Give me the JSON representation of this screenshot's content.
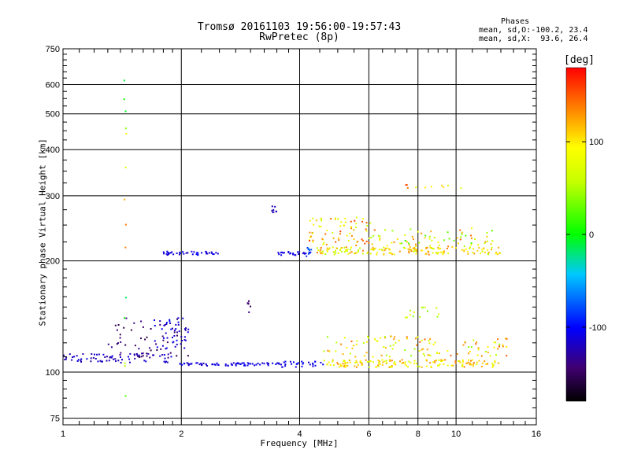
{
  "chart_data": {
    "type": "scatter",
    "title": "Tromsø 20161103 19:56:00-19:57:43",
    "subtitle": "RwPretec (8p)",
    "xlabel": "Frequency [MHz]",
    "ylabel": "Stationary phase Virtual Height [km]",
    "x_scale": "log",
    "y_scale": "log",
    "xlim": [
      1,
      16
    ],
    "ylim": [
      72,
      750
    ],
    "x_ticks": [
      1,
      2,
      4,
      6,
      8,
      10,
      16
    ],
    "x_tick_labels": [
      "1",
      "2",
      "4",
      "6",
      "8",
      "10",
      "16"
    ],
    "y_ticks": [
      75,
      100,
      200,
      300,
      400,
      500,
      600,
      750
    ],
    "y_tick_labels": [
      "75",
      "100",
      "200",
      "300",
      "400",
      "500",
      "600",
      "750"
    ],
    "grid": true,
    "stats": {
      "heading": "Phases",
      "o_line": "mean, sd,O:-100.2, 23.4",
      "x_line": "mean, sd,X:  93.6, 26.4"
    },
    "colorbar": {
      "title": "[deg]",
      "range": [
        -180,
        180
      ],
      "ticks": [
        100,
        0,
        -100
      ],
      "tick_labels": [
        "100",
        "0",
        "-100"
      ]
    },
    "clusters": [
      {
        "x": [
          1.0,
          1.9
        ],
        "y": [
          106,
          112
        ],
        "phase": [
          -105,
          -130
        ],
        "n": 70
      },
      {
        "x": [
          1.9,
          3.6
        ],
        "y": [
          104,
          106
        ],
        "phase": [
          -100,
          -120
        ],
        "n": 70
      },
      {
        "x": [
          3.6,
          4.6
        ],
        "y": [
          103,
          107
        ],
        "phase": [
          -95,
          -115
        ],
        "n": 28
      },
      {
        "x": [
          4.6,
          13.0
        ],
        "y": [
          103,
          108
        ],
        "phase": [
          60,
          140
        ],
        "n": 160
      },
      {
        "x": [
          1.3,
          2.1
        ],
        "y": [
          108,
          140
        ],
        "phase": [
          -130,
          -160
        ],
        "n": 55
      },
      {
        "x": [
          1.7,
          2.1
        ],
        "y": [
          115,
          142
        ],
        "phase": [
          -95,
          -125
        ],
        "n": 45
      },
      {
        "x": [
          4.6,
          13.5
        ],
        "y": [
          110,
          125
        ],
        "phase": [
          40,
          150
        ],
        "n": 110
      },
      {
        "x": [
          7.2,
          9.2
        ],
        "y": [
          140,
          150
        ],
        "phase": [
          30,
          90
        ],
        "n": 14
      },
      {
        "x": [
          4.4,
          13.0
        ],
        "y": [
          208,
          218
        ],
        "phase": [
          50,
          140
        ],
        "n": 160
      },
      {
        "x": [
          4.2,
          6.2
        ],
        "y": [
          220,
          262
        ],
        "phase": [
          60,
          160
        ],
        "n": 70
      },
      {
        "x": [
          6.0,
          12.5
        ],
        "y": [
          218,
          245
        ],
        "phase": [
          20,
          150
        ],
        "n": 70
      },
      {
        "x": [
          1.8,
          2.5
        ],
        "y": [
          207,
          212
        ],
        "phase": [
          -100,
          -120
        ],
        "n": 40
      },
      {
        "x": [
          3.5,
          4.2
        ],
        "y": [
          207,
          212
        ],
        "phase": [
          -100,
          -115
        ],
        "n": 22
      },
      {
        "x": [
          3.4,
          3.5
        ],
        "y": [
          270,
          282
        ],
        "phase": [
          -115,
          -125
        ],
        "n": 8
      },
      {
        "x": [
          2.95,
          3.0
        ],
        "y": [
          145,
          156
        ],
        "phase": [
          -140,
          -150
        ],
        "n": 7
      },
      {
        "x": [
          7.3,
          10.6
        ],
        "y": [
          314,
          322
        ],
        "phase": [
          60,
          160
        ],
        "n": 10
      },
      {
        "x": [
          4.1,
          4.3
        ],
        "y": [
          204,
          218
        ],
        "phase": [
          -70,
          -100
        ],
        "n": 10
      },
      {
        "x": [
          1.43,
          1.45
        ],
        "y": [
          85,
          620
        ],
        "phase": [
          -20,
          140
        ],
        "n": 14
      }
    ]
  }
}
